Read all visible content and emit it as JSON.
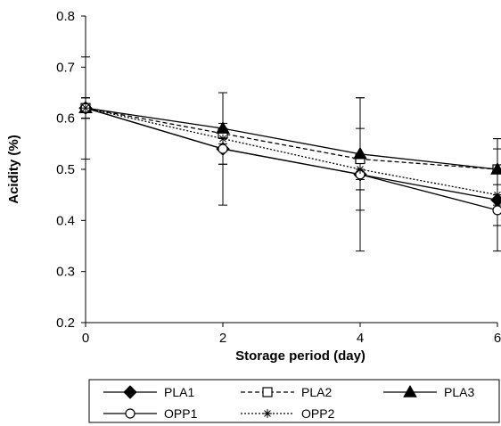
{
  "chart_data": {
    "type": "line",
    "title": "",
    "xlabel": "Storage period (day)",
    "ylabel": "Acidity (%)",
    "x": [
      0,
      2,
      4,
      6
    ],
    "xlim": [
      0,
      6
    ],
    "ylim": [
      0.2,
      0.8
    ],
    "yticks": [
      "0.2",
      "0.3",
      "0.4",
      "0.5",
      "0.6",
      "0.7",
      "0.8"
    ],
    "xticks": [
      "0",
      "2",
      "4",
      "6"
    ],
    "grid": false,
    "legend_position": "bottom",
    "series": [
      {
        "name": "PLA1",
        "marker": "filled-diamond",
        "dash": "solid",
        "values": [
          0.62,
          0.54,
          0.49,
          0.44
        ],
        "error": [
          0.1,
          0.11,
          0.15,
          0.1
        ]
      },
      {
        "name": "PLA2",
        "marker": "open-square",
        "dash": "dashed",
        "values": [
          0.62,
          0.57,
          0.52,
          0.5
        ],
        "error": [
          0.02,
          0.02,
          0.06,
          0.06
        ]
      },
      {
        "name": "PLA3",
        "marker": "filled-triangle",
        "dash": "solid",
        "values": [
          0.62,
          0.58,
          0.53,
          0.5
        ],
        "error": [
          0.02,
          0.07,
          0.11,
          0.06
        ]
      },
      {
        "name": "OPP1",
        "marker": "open-circle",
        "dash": "solid",
        "values": [
          0.62,
          0.54,
          0.49,
          0.42
        ],
        "error": [
          0.02,
          0.03,
          0.03,
          0.03
        ]
      },
      {
        "name": "OPP2",
        "marker": "asterisk",
        "dash": "dotted",
        "values": [
          0.62,
          0.56,
          0.5,
          0.45
        ],
        "error": [
          0.02,
          0.02,
          0.02,
          0.02
        ]
      }
    ]
  }
}
